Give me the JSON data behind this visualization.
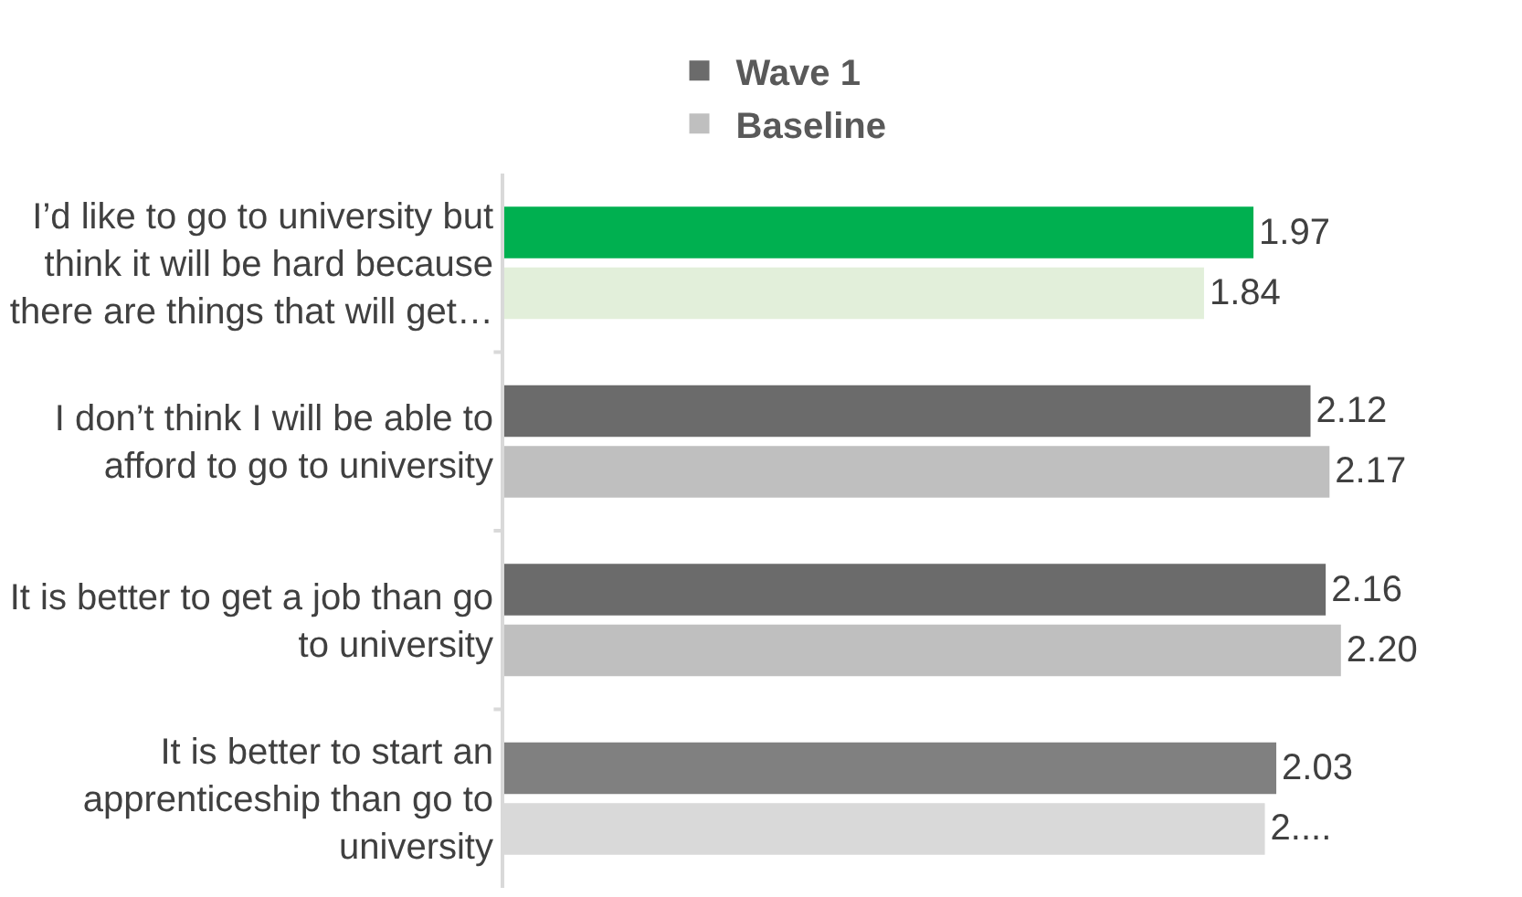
{
  "chart_data": {
    "type": "bar",
    "orientation": "horizontal",
    "categories": [
      "I’d like to go to university but think it will be hard because there are things that will get…",
      "I don’t think I will be able to afford to go to university",
      "It is better to get a job than go to university",
      "It is better to start an apprenticeship than go to university"
    ],
    "series": [
      {
        "name": "Wave 1",
        "color": "#6b6b6b",
        "colors": [
          "#00b050",
          "#6b6b6b",
          "#6b6b6b",
          "#808080"
        ],
        "values": [
          1.97,
          2.12,
          2.16,
          2.03
        ],
        "value_labels": [
          "1.97",
          "2.12",
          "2.16",
          "2.03"
        ]
      },
      {
        "name": "Baseline",
        "color": "#bfbfbf",
        "colors": [
          "#e2efda",
          "#bfbfbf",
          "#bfbfbf",
          "#d9d9d9"
        ],
        "values": [
          1.84,
          2.17,
          2.2,
          2.0
        ],
        "value_labels": [
          "1.84",
          "2.17",
          "2.20",
          "2...."
        ]
      }
    ],
    "tick_labels": "y",
    "legend": "top"
  }
}
